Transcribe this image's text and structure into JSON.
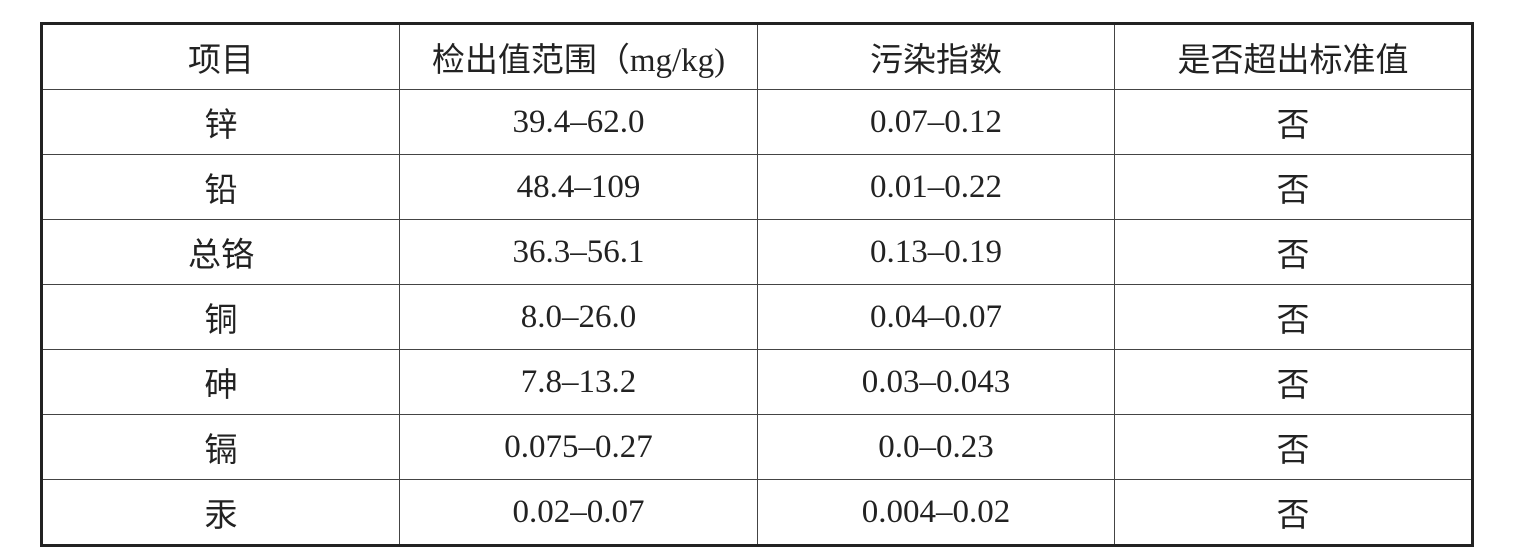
{
  "table": {
    "header": [
      "项目",
      "检出值范围（mg/kg)",
      "污染指数",
      "是否超出标准值"
    ],
    "rows": [
      [
        "锌",
        "39.4–62.0",
        "0.07–0.12",
        "否"
      ],
      [
        "铅",
        "48.4–109",
        "0.01–0.22",
        "否"
      ],
      [
        "总铬",
        "36.3–56.1",
        "0.13–0.19",
        "否"
      ],
      [
        "铜",
        "8.0–26.0",
        "0.04–0.07",
        "否"
      ],
      [
        "砷",
        "7.8–13.2",
        "0.03–0.043",
        "否"
      ],
      [
        "镉",
        "0.075–0.27",
        "0.0–0.23",
        "否"
      ],
      [
        "汞",
        "0.02–0.07",
        "0.004–0.02",
        "否"
      ]
    ]
  }
}
